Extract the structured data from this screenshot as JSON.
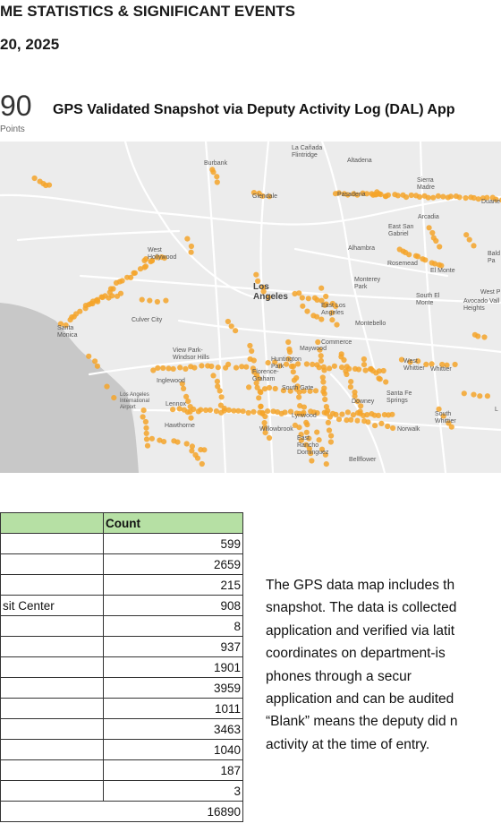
{
  "header": {
    "title_fragment": "ME STATISTICS & SIGNIFICANT EVENTS",
    "date_fragment": "20, 2025"
  },
  "kpi": {
    "value_fragment": "90",
    "unit_fragment": "Points"
  },
  "map": {
    "title_fragment": "GPS Validated Snapshot via Deputy Activity Log (DAL) App",
    "labels": {
      "la_canada": "La Cañada\nFlintridge",
      "altadena": "Altadena",
      "burbank": "Burbank",
      "sierra_madre": "Sierra\nMadre",
      "glendale": "Glendale",
      "pasadena": "Pasadena",
      "duarte": "Duarte",
      "arcadia": "Arcadia",
      "east_san_gabriel": "East San\nGabriel",
      "west_hollywood": "West\nHollywood",
      "alhambra": "Alhambra",
      "rosemead": "Rosemead",
      "el_monte": "El Monte",
      "baldwin_park": "Bald\nPa",
      "los_angeles": "Los\nAngeles",
      "monterey_park": "Monterey\nPark",
      "south_el_monte": "South El\nMonte",
      "west_puente": "West P",
      "avocado_heights": "Avocado Vall\nHeights",
      "east_los_angeles": "East Los\nAngeles",
      "culver_city": "Culver City",
      "santa_monica": "Santa\nMonica",
      "montebello": "Montebello",
      "commerce": "Commerce",
      "view_park": "View Park-\nWindsor Hills",
      "maywood": "Maywood",
      "huntington_park": "Huntington\nPark",
      "west_whittier": "West\nWhittier",
      "whittier": "Whittier",
      "inglewood": "Inglewood",
      "florence_graham": "Florence-\nGraham",
      "south_gate": "South Gate",
      "santa_fe_springs": "Santa Fe\nSprings",
      "la_airport": "Los Angeles\nInternational\nAirport",
      "lennox": "Lennox",
      "downey": "Downey",
      "south_whittier": "South\nWhittier",
      "hawthorne": "Hawthorne",
      "lynwood": "Lynwood",
      "willowbrook": "Willowbrook",
      "norwalk": "Norwalk",
      "east_rancho": "East\nRancho\nDominguez",
      "bellflower": "Bellflower",
      "la_edge": "L"
    }
  },
  "table": {
    "header_label": "",
    "header_count": "Count",
    "rows": [
      {
        "label": "",
        "count": "599"
      },
      {
        "label": "",
        "count": "2659"
      },
      {
        "label": "",
        "count": "215"
      },
      {
        "label": "sit Center",
        "count": "908"
      },
      {
        "label": "",
        "count": "8"
      },
      {
        "label": "",
        "count": "937"
      },
      {
        "label": "",
        "count": "1901"
      },
      {
        "label": "",
        "count": "3959"
      },
      {
        "label": "",
        "count": "1011"
      },
      {
        "label": "",
        "count": "3463"
      },
      {
        "label": "",
        "count": "1040"
      },
      {
        "label": "",
        "count": "187"
      },
      {
        "label": "",
        "count": "3"
      }
    ],
    "total": "16890"
  },
  "paragraph": {
    "lines": [
      "The GPS data map includes th",
      "snapshot. The data is collected",
      "application and verified via latit",
      "coordinates on department-is",
      "phones   through   a   secur",
      "application and can be audited",
      "“Blank” means the deputy did n",
      "activity at the time of entry."
    ]
  },
  "colors": {
    "map_bg": "#ececec",
    "water": "#c8c8c8",
    "roads": "#ffffff",
    "points": "#f5a42a",
    "table_header": "#b6e0a4"
  }
}
